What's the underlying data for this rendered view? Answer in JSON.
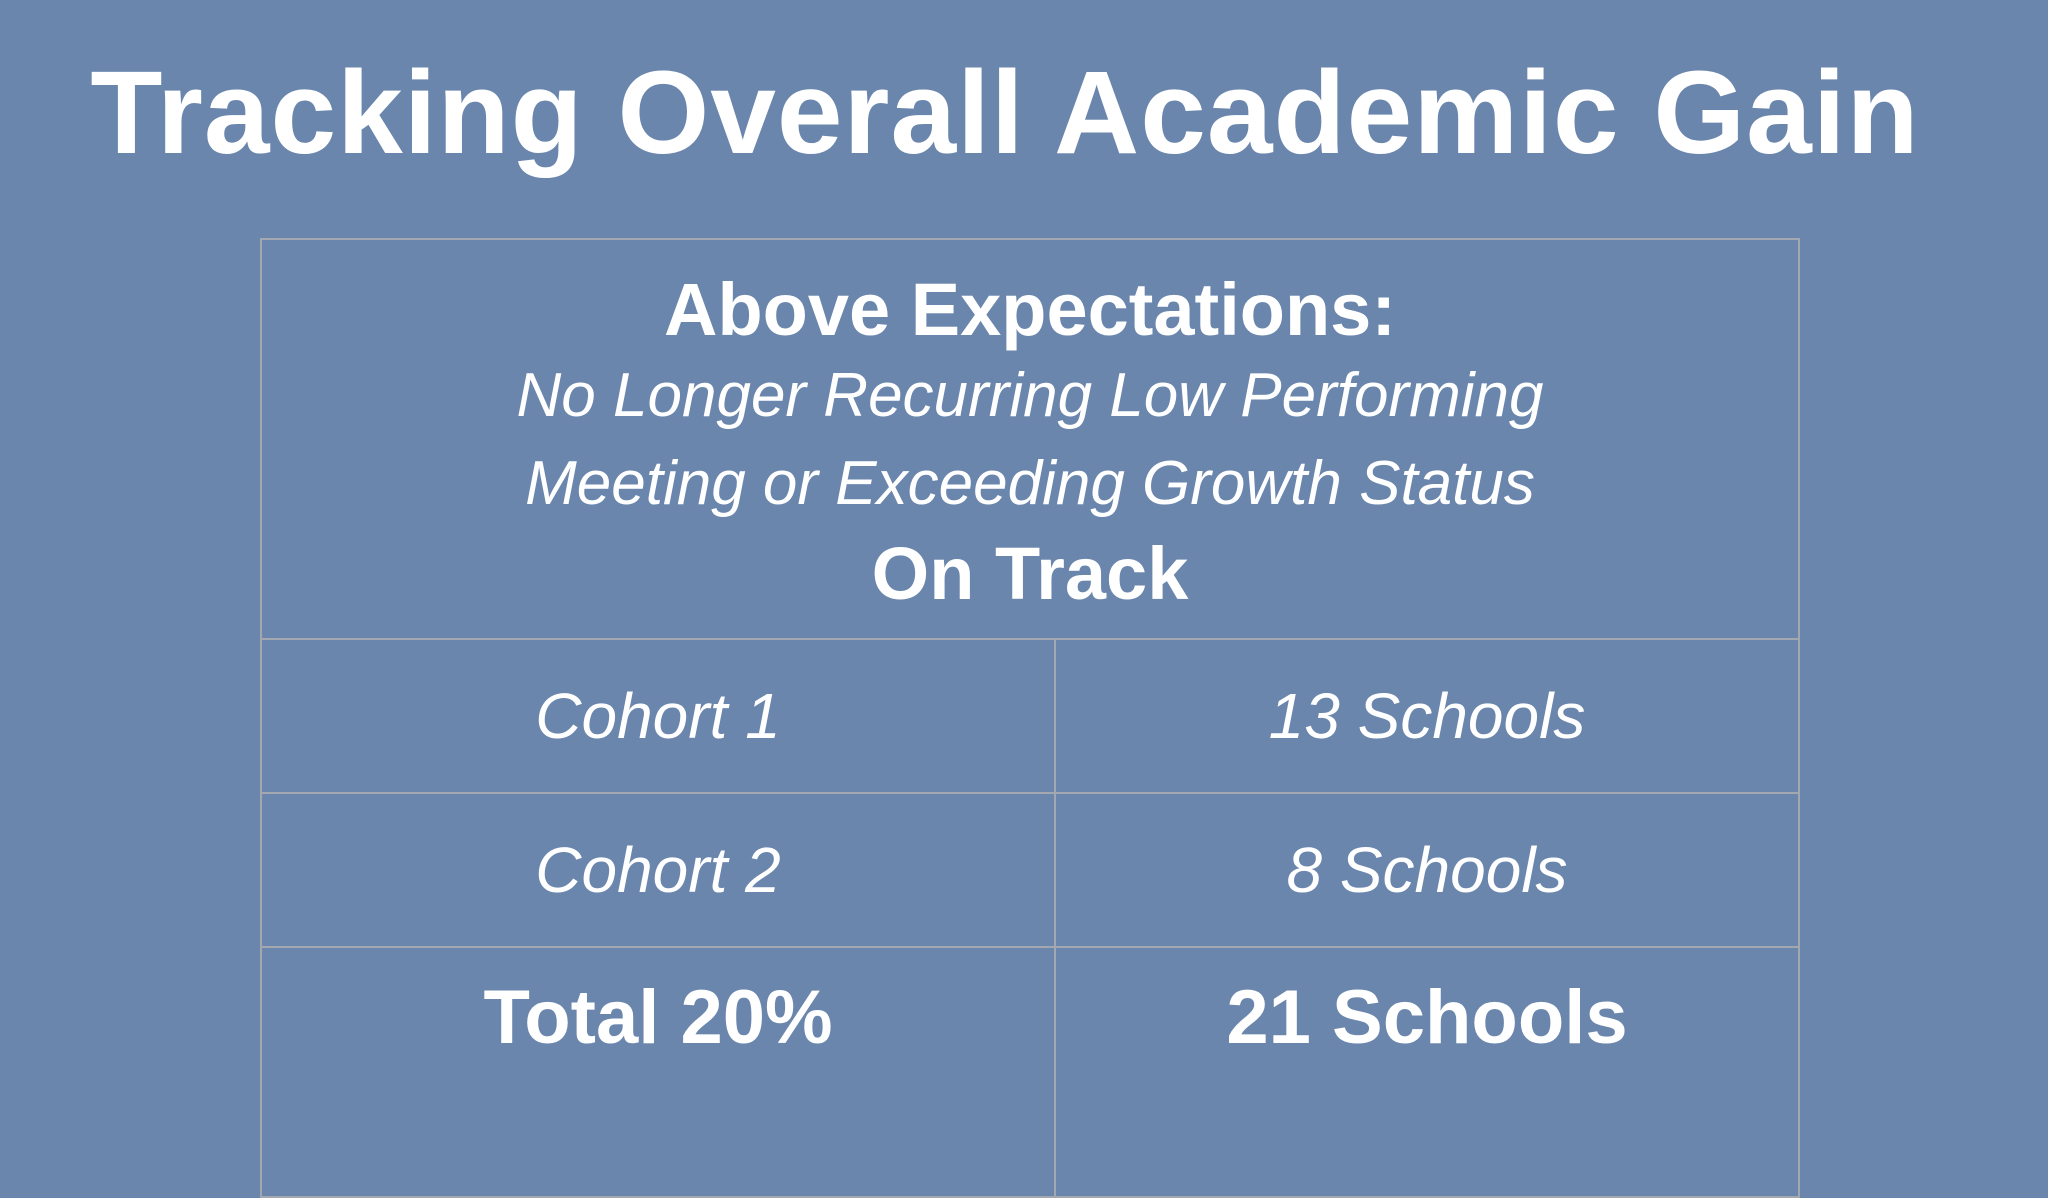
{
  "slide": {
    "title": "Tracking Overall Academic Gain"
  },
  "table": {
    "header": {
      "heading": "Above Expectations:",
      "criteria": [
        "No Longer Recurring Low Performing",
        "Meeting or Exceeding Growth Status"
      ],
      "status": "On Track"
    },
    "rows": [
      {
        "label": "Cohort 1",
        "value": "13 Schools"
      },
      {
        "label": "Cohort 2",
        "value": "8 Schools"
      }
    ],
    "total": {
      "label": "Total 20%",
      "value": "21 Schools"
    }
  }
}
